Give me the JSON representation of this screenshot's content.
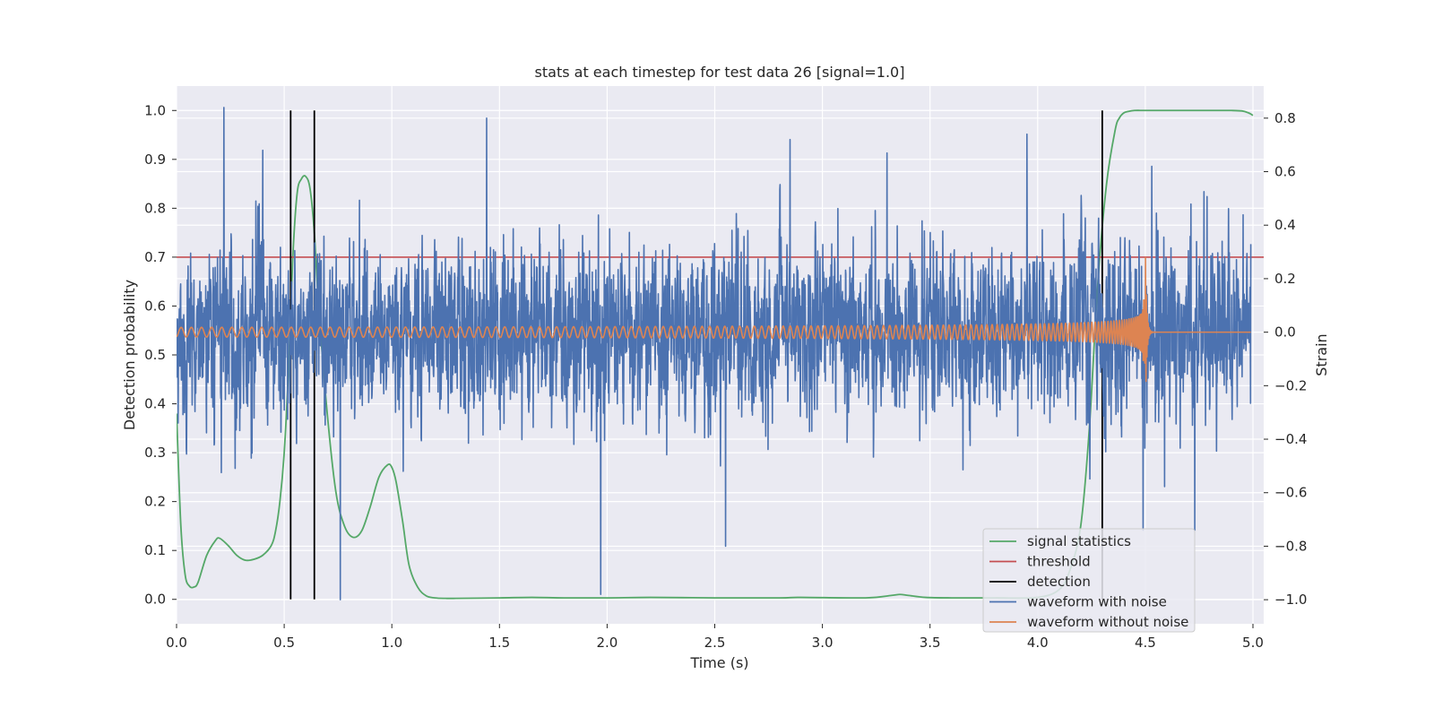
{
  "chart_data": {
    "type": "line",
    "title": "stats at each timestep for test data 26 [signal=1.0]",
    "xlabel": "Time (s)",
    "ylabel_left": "Detection probability",
    "ylabel_right": "Strain",
    "xlim": [
      0.0,
      5.05
    ],
    "ylim_left": [
      -0.05,
      1.05
    ],
    "ylim_right": [
      -1.09,
      0.92
    ],
    "x_ticks": [
      "0.0",
      "0.5",
      "1.0",
      "1.5",
      "2.0",
      "2.5",
      "3.0",
      "3.5",
      "4.0",
      "4.5",
      "5.0"
    ],
    "y_ticks_left": [
      "0.0",
      "0.1",
      "0.2",
      "0.3",
      "0.4",
      "0.5",
      "0.6",
      "0.7",
      "0.8",
      "0.9",
      "1.0"
    ],
    "y_ticks_right": [
      "−1.0",
      "−0.8",
      "−0.6",
      "−0.4",
      "−0.2",
      "0.0",
      "0.2",
      "0.4",
      "0.6",
      "0.8"
    ],
    "grid": true,
    "legend_position": "lower-right",
    "colors": {
      "signal_statistics": "#55a868",
      "threshold": "#c44e52",
      "detection": "#000000",
      "waveform_with_noise": "#4c72b0",
      "waveform_without_noise": "#dd8452",
      "background": "#eaeaf2",
      "grid": "#ffffff"
    },
    "series": [
      {
        "name": "signal statistics",
        "axis": "left",
        "x": [
          0.0,
          0.02,
          0.04,
          0.06,
          0.08,
          0.1,
          0.14,
          0.18,
          0.2,
          0.24,
          0.28,
          0.32,
          0.36,
          0.4,
          0.44,
          0.46,
          0.48,
          0.5,
          0.52,
          0.54,
          0.56,
          0.58,
          0.6,
          0.62,
          0.64,
          0.66,
          0.7,
          0.74,
          0.78,
          0.82,
          0.86,
          0.9,
          0.94,
          0.98,
          1.0,
          1.02,
          1.05,
          1.08,
          1.12,
          1.16,
          1.2,
          1.25,
          1.3,
          1.5,
          1.65,
          1.8,
          2.0,
          2.2,
          2.5,
          2.8,
          2.9,
          3.2,
          3.32,
          3.36,
          3.4,
          3.48,
          3.6,
          3.8,
          4.0,
          4.1,
          4.15,
          4.2,
          4.24,
          4.28,
          4.32,
          4.36,
          4.38,
          4.4,
          4.42,
          4.45,
          4.5,
          4.6,
          4.8,
          4.9,
          4.95,
          4.98,
          5.0
        ],
        "values": [
          0.38,
          0.15,
          0.05,
          0.027,
          0.025,
          0.035,
          0.09,
          0.12,
          0.125,
          0.11,
          0.09,
          0.08,
          0.082,
          0.09,
          0.11,
          0.14,
          0.2,
          0.3,
          0.47,
          0.7,
          0.83,
          0.86,
          0.865,
          0.84,
          0.75,
          0.6,
          0.38,
          0.22,
          0.15,
          0.127,
          0.14,
          0.19,
          0.25,
          0.275,
          0.27,
          0.24,
          0.16,
          0.07,
          0.025,
          0.007,
          0.003,
          0.002,
          0.002,
          0.003,
          0.004,
          0.003,
          0.003,
          0.004,
          0.003,
          0.003,
          0.004,
          0.003,
          0.008,
          0.01,
          0.008,
          0.004,
          0.003,
          0.003,
          0.004,
          0.02,
          0.06,
          0.15,
          0.35,
          0.65,
          0.85,
          0.96,
          0.985,
          0.995,
          0.998,
          1.0,
          1.0,
          1.0,
          1.0,
          1.0,
          0.999,
          0.995,
          0.99
        ]
      },
      {
        "name": "threshold",
        "axis": "left",
        "x": [
          0.0,
          5.05
        ],
        "values": [
          0.7,
          0.7
        ]
      },
      {
        "name": "detection",
        "axis": "left",
        "type": "vlines",
        "x": [
          0.53,
          0.64,
          4.3
        ],
        "ymin": 0.0,
        "ymax": 1.0
      },
      {
        "name": "waveform with noise",
        "axis": "right",
        "x_range": [
          0.0,
          4.99
        ],
        "noise_sigma": 0.18,
        "spikes": [
          {
            "x": 0.22,
            "value": 0.84
          },
          {
            "x": 0.76,
            "value": -1.0
          },
          {
            "x": 1.44,
            "value": 0.8
          },
          {
            "x": 1.97,
            "value": -0.98
          },
          {
            "x": 2.55,
            "value": -0.8
          },
          {
            "x": 2.85,
            "value": 0.72
          },
          {
            "x": 3.95,
            "value": 0.74
          },
          {
            "x": 4.49,
            "value": -0.74
          },
          {
            "x": 4.73,
            "value": -0.74
          },
          {
            "x": 4.53,
            "value": 0.62
          },
          {
            "x": 0.4,
            "value": 0.68
          },
          {
            "x": 3.3,
            "value": 0.67
          }
        ]
      },
      {
        "name": "waveform without noise",
        "axis": "right",
        "x_range": [
          0.0,
          4.99
        ],
        "merger_time": 4.5,
        "amplitude_start": 0.018,
        "peak_positive": 0.35,
        "peak_negative": -0.5,
        "f_start_hz": 21,
        "f_merger_hz": 120
      }
    ],
    "legend": [
      "signal statistics",
      "threshold",
      "detection",
      "waveform with noise",
      "waveform without noise"
    ]
  }
}
